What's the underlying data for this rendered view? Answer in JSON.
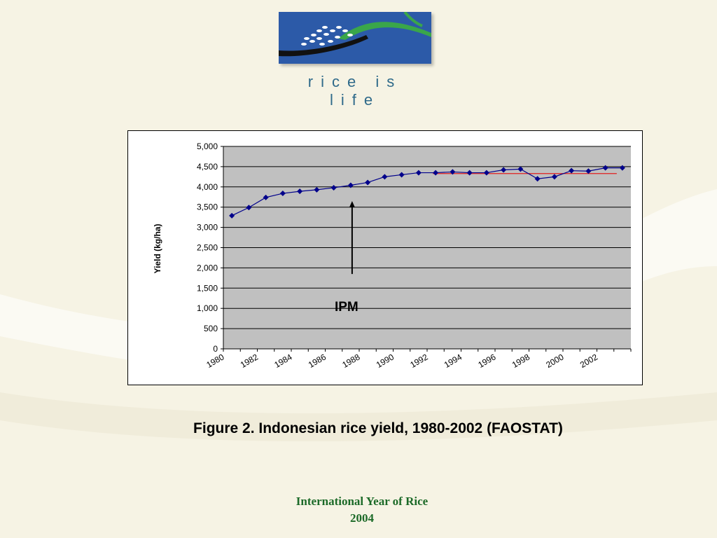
{
  "header": {
    "tagline": "rice is life"
  },
  "chart_data": {
    "type": "line",
    "ylabel": "Yield (kg/ha)",
    "xlabel": "",
    "ylim": [
      0,
      5000
    ],
    "ytick_labels": [
      "0",
      "500",
      "1,000",
      "1,500",
      "2,000",
      "2,500",
      "3,000",
      "3,500",
      "4,000",
      "4,500",
      "5,000"
    ],
    "xtick_labels": [
      "1980",
      "1982",
      "1984",
      "1986",
      "1988",
      "1990",
      "1992",
      "1994",
      "1996",
      "1998",
      "2000",
      "2002"
    ],
    "grid": true,
    "series": [
      {
        "color": "#00008b",
        "x": [
          1980,
          1981,
          1982,
          1983,
          1984,
          1985,
          1986,
          1987,
          1988,
          1989,
          1990,
          1991,
          1992,
          1993,
          1994,
          1995,
          1996,
          1997,
          1998,
          1999,
          2000,
          2001,
          2002
        ],
        "values": [
          3290,
          3490,
          3740,
          3840,
          3890,
          3930,
          3980,
          4040,
          4110,
          4250,
          4300,
          4350,
          4350,
          4370,
          4350,
          4350,
          4420,
          4440,
          4200,
          4250,
          4400,
          4390,
          4470
        ]
      }
    ],
    "extra_point": {
      "value": 4470
    },
    "plateau_line": {
      "value": 4330,
      "color": "#e02020",
      "x_from": 1992,
      "x_to": 2002
    },
    "annotation": {
      "text": "IPM",
      "x": 1987,
      "arrow_from": 1850,
      "arrow_to": 3650
    }
  },
  "caption": "Figure 2. Indonesian rice yield, 1980-2002 (FAOSTAT)",
  "footer": {
    "line1": "International Year of Rice",
    "line2": "2004"
  }
}
